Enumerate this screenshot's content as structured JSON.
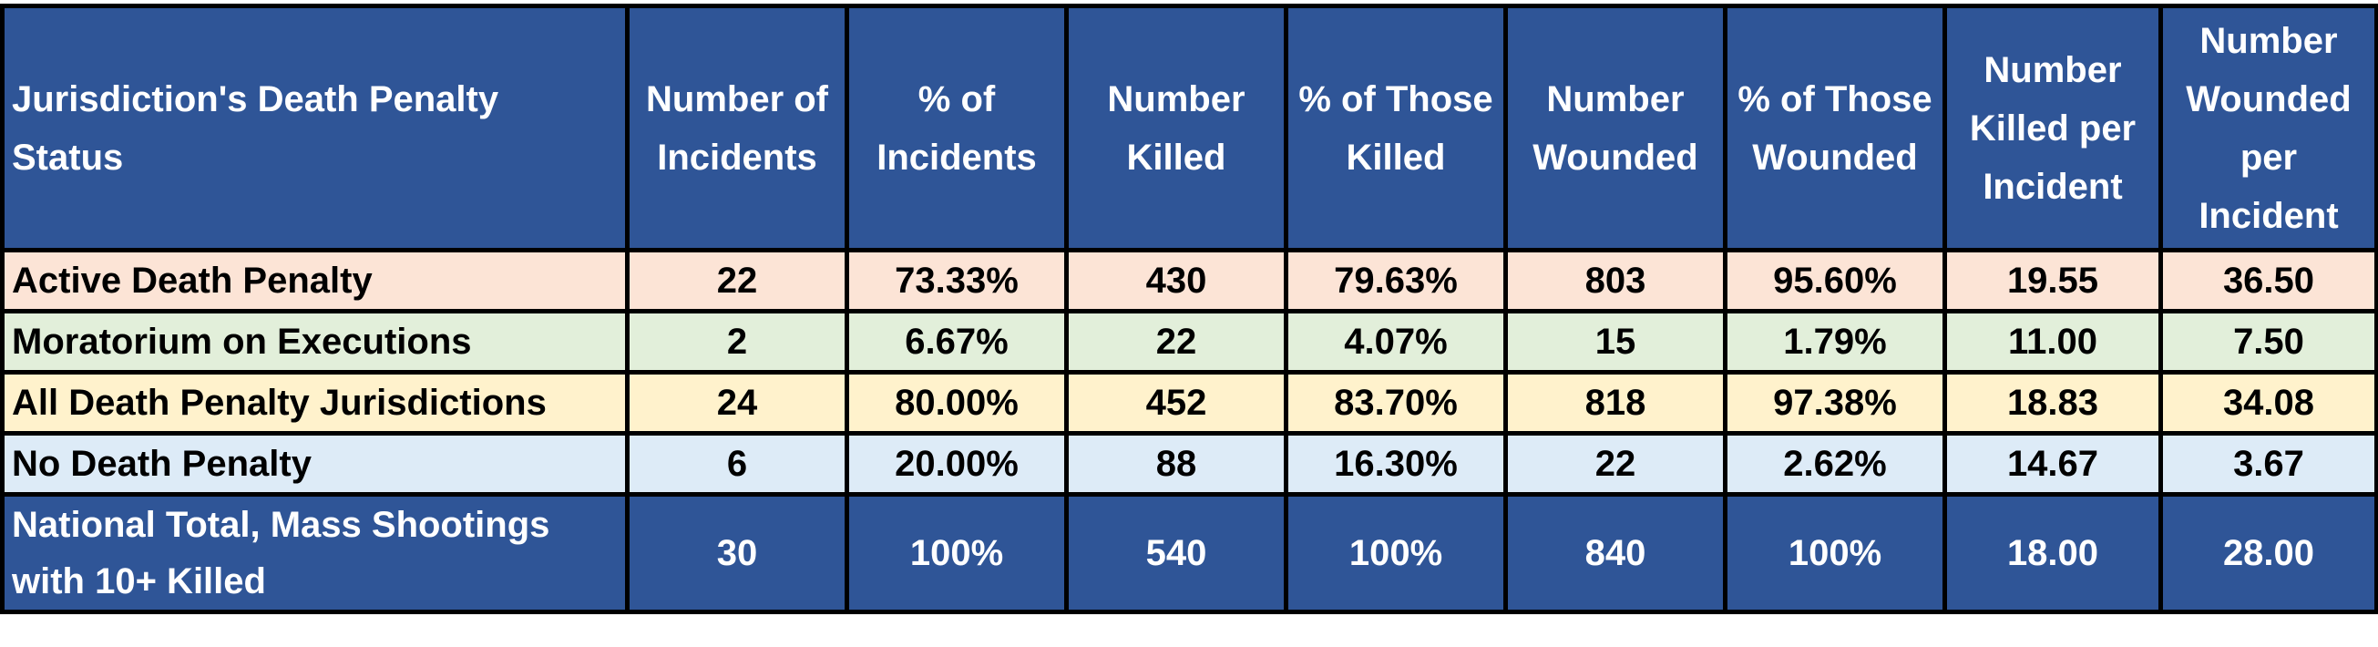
{
  "colors": {
    "header_bg": "#2f5597",
    "header_text": "#ffffff",
    "active": "#fce4d6",
    "moratorium": "#e2efda",
    "all_dp": "#fff2cc",
    "no_dp": "#ddebf7",
    "total_bg": "#2f5597"
  },
  "table": {
    "headers": [
      "Jurisdiction's Death  Penalty\nStatus",
      "Number of\nIncidents",
      "% of\nIncidents",
      "Number\nKilled",
      "% of Those\nKilled",
      "Number\nWounded",
      "% of Those\nWounded",
      "Number\nKilled per\nIncident",
      "Number\nWounded\nper\nIncident"
    ],
    "rows": [
      {
        "cells": [
          "Active Death Penalty",
          "22",
          "73.33%",
          "430",
          "79.63%",
          "803",
          "95.60%",
          "19.55",
          "36.50"
        ]
      },
      {
        "cells": [
          "Moratorium on Executions",
          "2",
          "6.67%",
          "22",
          "4.07%",
          "15",
          "1.79%",
          "11.00",
          "7.50"
        ]
      },
      {
        "cells": [
          "All Death Penalty Jurisdictions",
          "24",
          "80.00%",
          "452",
          "83.70%",
          "818",
          "97.38%",
          "18.83",
          "34.08"
        ]
      },
      {
        "cells": [
          "No Death Penalty",
          "6",
          "20.00%",
          "88",
          "16.30%",
          "22",
          "2.62%",
          "14.67",
          "3.67"
        ]
      },
      {
        "cells": [
          "National Total, Mass Shootings\nwith 10+ Killed",
          "30",
          "100%",
          "540",
          "100%",
          "840",
          "100%",
          "18.00",
          "28.00"
        ]
      }
    ]
  }
}
